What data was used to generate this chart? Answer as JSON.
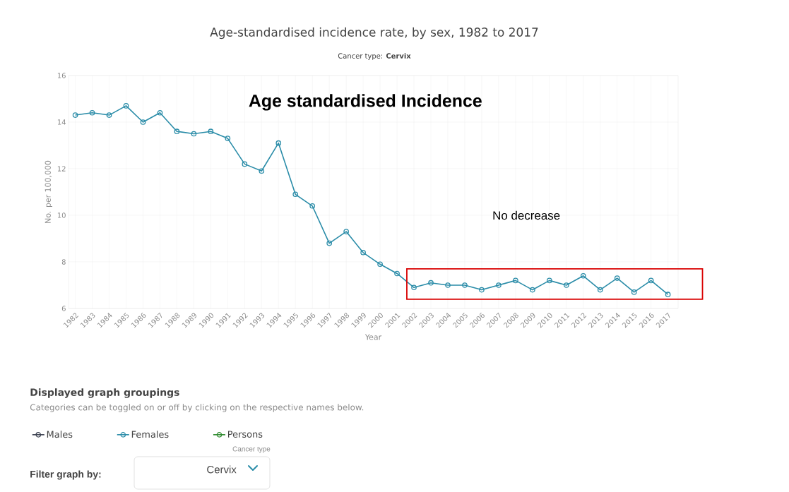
{
  "chart_data": {
    "type": "line",
    "title": "Age-standardised incidence rate, by sex, 1982 to 2017",
    "subtitle": "Cancer type: **Cervix**",
    "xlabel": "Year",
    "ylabel": "No. per 100,000",
    "categories": [
      "1982",
      "1983",
      "1984",
      "1985",
      "1986",
      "1987",
      "1988",
      "1989",
      "1990",
      "1991",
      "1992",
      "1993",
      "1994",
      "1995",
      "1996",
      "1997",
      "1998",
      "1999",
      "2000",
      "2001",
      "2002",
      "2003",
      "2004",
      "2005",
      "2006",
      "2007",
      "2008",
      "2009",
      "2010",
      "2011",
      "2012",
      "2013",
      "2014",
      "2015",
      "2016",
      "2017"
    ],
    "series": [
      {
        "name": "Males",
        "color": "#3b4150",
        "values": [
          null,
          null,
          null,
          null,
          null,
          null,
          null,
          null,
          null,
          null,
          null,
          null,
          null,
          null,
          null,
          null,
          null,
          null,
          null,
          null,
          null,
          null,
          null,
          null,
          null,
          null,
          null,
          null,
          null,
          null,
          null,
          null,
          null,
          null,
          null,
          null
        ]
      },
      {
        "name": "Females",
        "color": "#2a8ca8",
        "values": [
          14.3,
          14.4,
          14.3,
          14.7,
          14.0,
          14.4,
          13.6,
          13.5,
          13.6,
          13.3,
          12.2,
          11.9,
          13.1,
          10.9,
          10.4,
          8.8,
          9.3,
          8.4,
          7.9,
          7.5,
          6.9,
          7.1,
          7.0,
          7.0,
          6.8,
          7.0,
          7.2,
          6.8,
          7.2,
          7.0,
          7.4,
          6.8,
          7.3,
          6.7,
          7.2,
          6.6
        ]
      },
      {
        "name": "Persons",
        "color": "#2e8b2e",
        "values": [
          null,
          null,
          null,
          null,
          null,
          null,
          null,
          null,
          null,
          null,
          null,
          null,
          null,
          null,
          null,
          null,
          null,
          null,
          null,
          null,
          null,
          null,
          null,
          null,
          null,
          null,
          null,
          null,
          null,
          null,
          null,
          null,
          null,
          null,
          null,
          null
        ]
      }
    ],
    "ylim": [
      6,
      16
    ],
    "yticks": [
      6,
      8,
      10,
      12,
      14,
      16
    ],
    "grid": true,
    "marker": "circle",
    "line_style": "solid",
    "legend": "bottom left",
    "annotations": [
      "Age standardised Incidence",
      "Displayed graph groupings",
      "Categories can be toggled on or off by clicking on the respective names below.",
      "Cancer type",
      "Filter graph by:",
      "Cervix",
      "No decrease"
    ]
  }
}
